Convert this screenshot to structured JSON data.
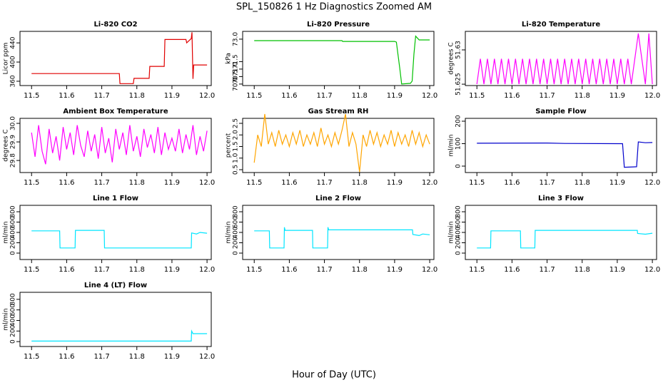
{
  "title": "SPL_150826  1 Hz Diagnostics Zoomed AM",
  "xlabel": "Hour of Day (UTC)",
  "chart_data": [
    {
      "type": "line",
      "title": "Li-820 CO2",
      "ylabel": "Licor ppm",
      "color": "#e00000",
      "x": [
        11.5,
        11.75,
        11.752,
        11.79,
        11.792,
        11.835,
        11.837,
        11.878,
        11.88,
        11.92,
        11.94,
        11.942,
        11.955,
        11.957,
        11.96,
        11.962,
        12.0
      ],
      "values": [
        376,
        376,
        355,
        355,
        366,
        366,
        391,
        391,
        447,
        447,
        447,
        440,
        449,
        462,
        365,
        394,
        394
      ],
      "xlim": [
        11.467,
        12.012
      ],
      "xticks": [
        11.5,
        11.6,
        11.7,
        11.8,
        11.9,
        {
          "value": 12,
          "label": "12.0"
        }
      ],
      "ylim": [
        351,
        464
      ],
      "yticks": [
        360,
        400,
        440
      ]
    },
    {
      "type": "line",
      "title": "Li-820 Pressure",
      "ylabel": "kPa",
      "color": "#00c000",
      "x": [
        11.5,
        11.75,
        11.752,
        11.9,
        11.905,
        11.915,
        11.92,
        11.945,
        11.95,
        11.955,
        11.96,
        11.97,
        12.0
      ],
      "values": [
        72.9,
        72.9,
        72.85,
        72.85,
        72.8,
        71.0,
        70.0,
        70.05,
        70.2,
        72.0,
        73.2,
        72.95,
        72.95
      ],
      "xlim": [
        11.467,
        12.012
      ],
      "xticks": [
        11.5,
        11.6,
        11.7,
        11.8,
        11.9,
        {
          "value": 12,
          "label": "12.0"
        }
      ],
      "ylim": [
        69.9,
        73.52
      ],
      "yticks": [
        {
          "value": 70,
          "label": "70.0"
        },
        70.5,
        {
          "value": 71,
          "label": "71.0"
        },
        71.5,
        {
          "value": 73,
          "label": "73.0"
        }
      ]
    },
    {
      "type": "line",
      "title": "Li-820 Temperature",
      "ylabel": "degrees C",
      "color": "#ff00ff",
      "x": [
        11.5,
        11.51,
        11.52,
        11.53,
        11.54,
        11.55,
        11.56,
        11.57,
        11.58,
        11.59,
        11.6,
        11.61,
        11.62,
        11.63,
        11.64,
        11.65,
        11.66,
        11.67,
        11.68,
        11.69,
        11.7,
        11.71,
        11.72,
        11.73,
        11.74,
        11.75,
        11.76,
        11.77,
        11.78,
        11.79,
        11.8,
        11.81,
        11.82,
        11.83,
        11.84,
        11.85,
        11.86,
        11.87,
        11.88,
        11.89,
        11.9,
        11.91,
        11.92,
        11.93,
        11.94,
        11.95,
        11.96,
        11.97,
        11.98,
        11.99,
        12.0
      ],
      "values": [
        51.625,
        51.6287,
        51.625,
        51.6287,
        51.625,
        51.6287,
        51.625,
        51.6287,
        51.625,
        51.6287,
        51.625,
        51.6287,
        51.625,
        51.6287,
        51.625,
        51.6287,
        51.625,
        51.6287,
        51.625,
        51.6287,
        51.625,
        51.6287,
        51.625,
        51.6287,
        51.625,
        51.6287,
        51.625,
        51.6287,
        51.625,
        51.6287,
        51.625,
        51.6287,
        51.625,
        51.6287,
        51.625,
        51.6287,
        51.625,
        51.6287,
        51.625,
        51.6287,
        51.625,
        51.6287,
        51.625,
        51.6287,
        51.625,
        51.6287,
        51.6324,
        51.6287,
        51.625,
        51.6324,
        51.625
      ],
      "xlim": [
        11.467,
        12.012
      ],
      "xticks": [
        11.5,
        11.6,
        11.7,
        11.8,
        11.9,
        {
          "value": 12,
          "label": "12.0"
        }
      ],
      "ylim": [
        51.6248,
        51.6327
      ],
      "yticks": [
        51.625,
        51.63
      ]
    },
    {
      "type": "line",
      "title": "Ambient Box Temperature",
      "ylabel": "degrees C",
      "color": "#ff00ff",
      "x": [
        11.5,
        11.51,
        11.52,
        11.53,
        11.54,
        11.55,
        11.56,
        11.57,
        11.58,
        11.59,
        11.6,
        11.61,
        11.62,
        11.63,
        11.64,
        11.65,
        11.66,
        11.67,
        11.68,
        11.69,
        11.7,
        11.71,
        11.72,
        11.73,
        11.74,
        11.75,
        11.76,
        11.77,
        11.78,
        11.79,
        11.8,
        11.81,
        11.82,
        11.83,
        11.84,
        11.85,
        11.86,
        11.87,
        11.88,
        11.89,
        11.9,
        11.91,
        11.92,
        11.93,
        11.94,
        11.95,
        11.96,
        11.97,
        11.98,
        11.99,
        12.0
      ],
      "values": [
        29.95,
        29.82,
        29.99,
        29.85,
        29.78,
        29.97,
        29.84,
        29.93,
        29.8,
        29.98,
        29.86,
        29.95,
        29.83,
        29.99,
        29.88,
        29.82,
        29.96,
        29.85,
        29.94,
        29.81,
        29.98,
        29.84,
        29.92,
        29.79,
        29.97,
        29.86,
        29.95,
        29.83,
        29.99,
        29.85,
        29.93,
        29.82,
        29.97,
        29.87,
        29.94,
        29.84,
        29.98,
        29.83,
        29.95,
        29.86,
        29.92,
        29.85,
        29.97,
        29.84,
        29.94,
        29.86,
        29.99,
        29.83,
        29.93,
        29.85,
        29.96
      ],
      "xlim": [
        11.467,
        12.012
      ],
      "xticks": [
        11.5,
        11.6,
        11.7,
        11.8,
        11.9,
        {
          "value": 12,
          "label": "12.0"
        }
      ],
      "ylim": [
        29.735,
        30.027
      ],
      "yticks": [
        29.8,
        29.9,
        {
          "value": 30,
          "label": "30.0"
        }
      ]
    },
    {
      "type": "line",
      "title": "Gas Stream RH",
      "ylabel": "percent",
      "color": "#ffa500",
      "x": [
        11.5,
        11.51,
        11.52,
        11.53,
        11.54,
        11.55,
        11.56,
        11.57,
        11.58,
        11.59,
        11.6,
        11.61,
        11.62,
        11.63,
        11.64,
        11.65,
        11.66,
        11.67,
        11.68,
        11.69,
        11.7,
        11.71,
        11.72,
        11.73,
        11.74,
        11.75,
        11.76,
        11.77,
        11.78,
        11.79,
        11.8,
        11.81,
        11.82,
        11.83,
        11.84,
        11.85,
        11.86,
        11.87,
        11.88,
        11.89,
        11.9,
        11.91,
        11.92,
        11.93,
        11.94,
        11.95,
        11.96,
        11.97,
        11.98,
        11.99,
        12.0
      ],
      "values": [
        0.8,
        2.0,
        1.5,
        2.9,
        1.6,
        2.1,
        1.5,
        2.2,
        1.6,
        2.0,
        1.5,
        2.1,
        1.6,
        2.2,
        1.5,
        2.0,
        1.6,
        2.1,
        1.5,
        2.3,
        1.6,
        2.0,
        1.5,
        2.1,
        1.6,
        2.2,
        2.9,
        1.5,
        2.1,
        1.6,
        0.4,
        2.0,
        1.5,
        2.2,
        1.6,
        2.1,
        1.5,
        2.0,
        1.6,
        2.2,
        1.5,
        2.1,
        1.6,
        2.0,
        1.5,
        2.2,
        1.6,
        2.1,
        1.5,
        2.0,
        1.6
      ],
      "xlim": [
        11.467,
        12.012
      ],
      "xticks": [
        11.5,
        11.6,
        11.7,
        11.8,
        11.9,
        {
          "value": 12,
          "label": "12.0"
        }
      ],
      "ylim": [
        0.377,
        2.715
      ],
      "yticks": [
        0.5,
        {
          "value": 1,
          "label": "1.0"
        },
        1.5,
        {
          "value": 2,
          "label": "2.0"
        },
        2.5
      ]
    },
    {
      "type": "line",
      "title": "Sample Flow",
      "ylabel": "ml/min",
      "color": "#0000cc",
      "x": [
        11.5,
        11.7,
        11.75,
        11.9,
        11.915,
        11.92,
        11.955,
        11.96,
        11.98,
        12.0
      ],
      "values": [
        102,
        103,
        101,
        100,
        100,
        -5,
        -3,
        108,
        104,
        105
      ],
      "xlim": [
        11.467,
        12.012
      ],
      "xticks": [
        11.5,
        11.6,
        11.7,
        11.8,
        11.9,
        {
          "value": 12,
          "label": "12.0"
        }
      ],
      "ylim": [
        -28.6,
        212.7
      ],
      "yticks": [
        0,
        100,
        200
      ]
    },
    {
      "type": "line",
      "title": "Line 1 Flow",
      "ylabel": "ml/min",
      "color": "#00e5ff",
      "x": [
        11.5,
        11.58,
        11.581,
        11.624,
        11.625,
        11.707,
        11.708,
        11.955,
        11.956,
        11.97,
        11.98,
        12.0
      ],
      "values": [
        430,
        430,
        100,
        100,
        440,
        440,
        100,
        100,
        390,
        370,
        400,
        385
      ],
      "xlim": [
        11.467,
        12.012
      ],
      "xticks": [
        11.5,
        11.6,
        11.7,
        11.8,
        11.9,
        {
          "value": 12,
          "label": "12.0"
        }
      ],
      "ylim": [
        -124,
        924
      ],
      "yticks": [
        0,
        200,
        400,
        600,
        800
      ]
    },
    {
      "type": "line",
      "title": "Line 2 Flow",
      "ylabel": "ml/min",
      "color": "#00e5ff",
      "x": [
        11.5,
        11.543,
        11.544,
        11.585,
        11.586,
        11.588,
        11.666,
        11.667,
        11.709,
        11.71,
        11.712,
        11.951,
        11.952,
        11.97,
        11.98,
        12.0
      ],
      "values": [
        430,
        430,
        100,
        100,
        500,
        440,
        440,
        100,
        100,
        500,
        450,
        450,
        360,
        340,
        370,
        355
      ],
      "xlim": [
        11.467,
        12.012
      ],
      "xticks": [
        11.5,
        11.6,
        11.7,
        11.8,
        11.9,
        {
          "value": 12,
          "label": "12.0"
        }
      ],
      "ylim": [
        -124,
        924
      ],
      "yticks": [
        0,
        200,
        400,
        600,
        800
      ]
    },
    {
      "type": "line",
      "title": "Line 3 Flow",
      "ylabel": "ml/min",
      "color": "#00e5ff",
      "x": [
        11.5,
        11.539,
        11.54,
        11.624,
        11.625,
        11.665,
        11.666,
        11.957,
        11.958,
        11.98,
        12.0
      ],
      "values": [
        100,
        100,
        430,
        430,
        100,
        100,
        440,
        440,
        380,
        365,
        385
      ],
      "xlim": [
        11.467,
        12.012
      ],
      "xticks": [
        11.5,
        11.6,
        11.7,
        11.8,
        11.9,
        {
          "value": 12,
          "label": "12.0"
        }
      ],
      "ylim": [
        -124,
        924
      ],
      "yticks": [
        0,
        200,
        400,
        600,
        800
      ]
    },
    {
      "type": "line",
      "title": "Line 4 (LT) Flow",
      "ylabel": "ml/min",
      "color": "#00e5ff",
      "x": [
        11.5,
        11.955,
        11.956,
        11.96,
        12.0
      ],
      "values": [
        10,
        10,
        200,
        150,
        150
      ],
      "xlim": [
        11.467,
        12.012
      ],
      "xticks": [
        11.5,
        11.6,
        11.7,
        11.8,
        11.9,
        {
          "value": 12,
          "label": "12.0"
        }
      ],
      "ylim": [
        -93,
        933
      ],
      "yticks": [
        0,
        200,
        400,
        600,
        800
      ]
    }
  ]
}
